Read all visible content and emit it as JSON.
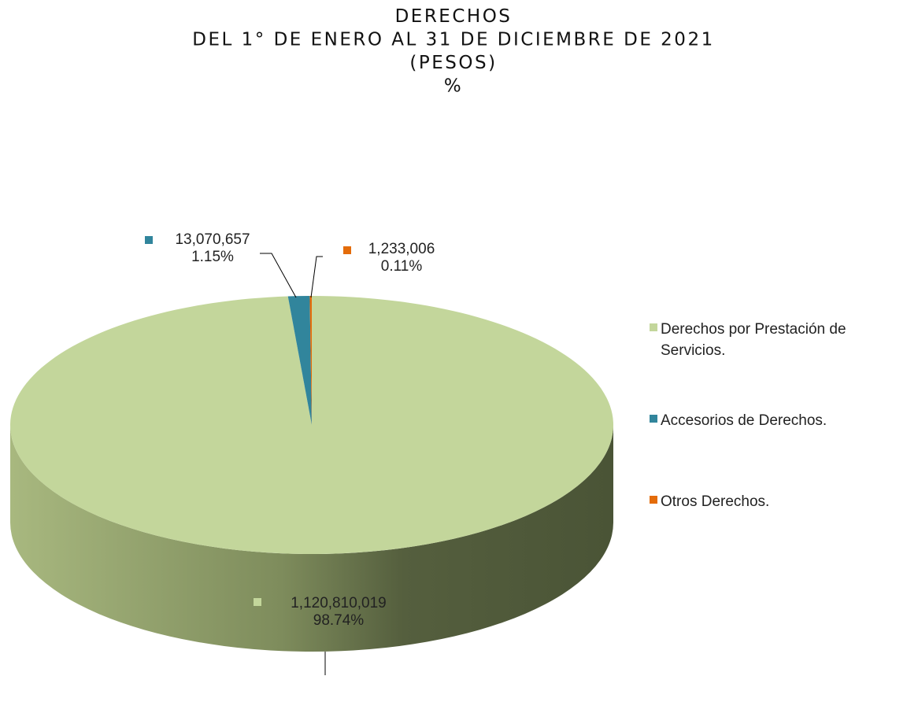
{
  "chart_data": {
    "type": "pie3d",
    "title": [
      "DERECHOS",
      "DEL 1° DE ENERO AL 31 DE DICIEMBRE DE 2021",
      "(PESOS)",
      "%"
    ],
    "categories": [
      "Derechos por Prestación de Servicios.",
      "Accesorios de Derechos.",
      "Otros Derechos."
    ],
    "values": [
      1120810019,
      13070657,
      1233006
    ],
    "value_labels": [
      "1,120,810,019",
      "13,070,657",
      "1,233,006"
    ],
    "percents": [
      98.74,
      1.15,
      0.11
    ],
    "percent_labels": [
      "98.74%",
      "1.15%",
      "0.11%"
    ],
    "colors": [
      "#c3d69b",
      "#31859c",
      "#e46c0a"
    ],
    "legend": "right"
  }
}
